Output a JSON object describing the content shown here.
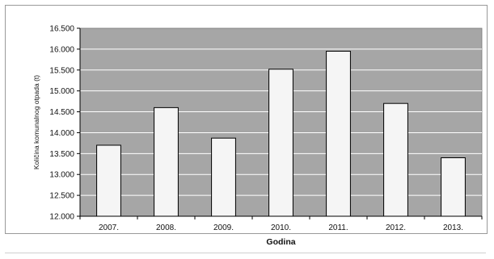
{
  "chart_data": {
    "type": "bar",
    "title": "",
    "xlabel": "Godina",
    "ylabel": "Količina komunalnog otpada (t)",
    "categories": [
      "2007.",
      "2008.",
      "2009.",
      "2010.",
      "2011.",
      "2012.",
      "2013."
    ],
    "values": [
      13700,
      14600,
      13870,
      15520,
      15950,
      14700,
      13400
    ],
    "ylim": [
      12000,
      16500
    ],
    "yticks": [
      12000,
      12500,
      13000,
      13500,
      14000,
      14500,
      15000,
      15500,
      16000,
      16500
    ],
    "ytick_labels": [
      "12.000",
      "12.500",
      "13.000",
      "13.500",
      "14.000",
      "14.500",
      "15.000",
      "15.500",
      "16.000",
      "16.500"
    ],
    "grid": true,
    "legend": "none",
    "colors": {
      "plot_background": "#a6a6a6",
      "bar_fill": "#f5f5f5",
      "bar_stroke": "#000000",
      "gridline": "#ffffff"
    }
  }
}
